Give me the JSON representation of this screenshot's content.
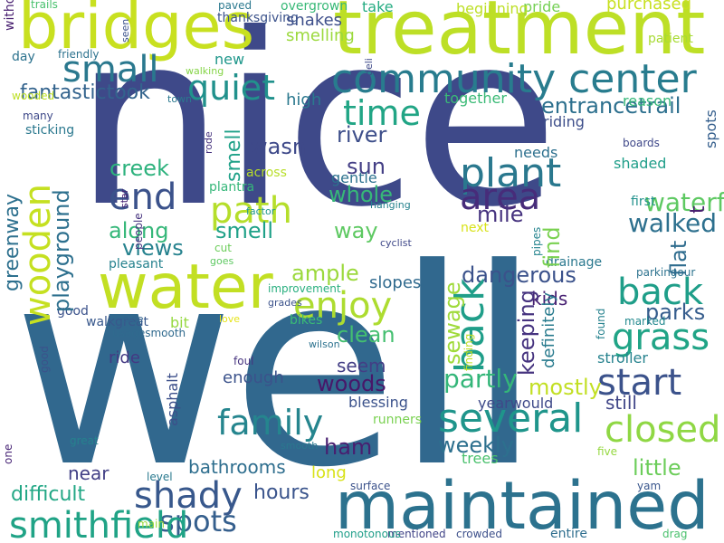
{
  "words": [
    {
      "text": "well",
      "color": "#31688e"
    },
    {
      "text": "nice",
      "color": "#3e4989"
    },
    {
      "text": "treatment",
      "color": "#bddf26"
    },
    {
      "text": "bridges",
      "color": "#c8e020"
    },
    {
      "text": "water",
      "color": "#c2df23"
    },
    {
      "text": "maintained",
      "color": "#2c728e"
    },
    {
      "text": "community center",
      "color": "#287c8e"
    },
    {
      "text": "small",
      "color": "#2a788e"
    },
    {
      "text": "quiet",
      "color": "#21918c"
    },
    {
      "text": "plant",
      "color": "#2a788e"
    },
    {
      "text": "time",
      "color": "#21a585"
    },
    {
      "text": "end",
      "color": "#3b528b"
    },
    {
      "text": "path",
      "color": "#b5de2b"
    },
    {
      "text": "area",
      "color": "#472c7a"
    },
    {
      "text": "enjoy",
      "color": "#addc30"
    },
    {
      "text": "back",
      "color": "#1f9e89"
    },
    {
      "text": "grass",
      "color": "#20a486"
    },
    {
      "text": "start",
      "color": "#3b528b"
    },
    {
      "text": "family",
      "color": "#25858e"
    },
    {
      "text": "several",
      "color": "#1f958b"
    },
    {
      "text": "closed",
      "color": "#8fd744"
    },
    {
      "text": "shady",
      "color": "#38588c"
    },
    {
      "text": "spots",
      "color": "#355f8d"
    },
    {
      "text": "smithfield",
      "color": "#20a386"
    },
    {
      "text": "wooden",
      "color": "#c5e021"
    },
    {
      "text": "greenway",
      "color": "#2d708e"
    },
    {
      "text": "fantastictook",
      "color": "#33638d"
    },
    {
      "text": "entrancetrail",
      "color": "#2d708e"
    },
    {
      "text": "playground",
      "color": "#2d708e"
    },
    {
      "text": "creek",
      "color": "#2db27d"
    },
    {
      "text": "along",
      "color": "#35b779"
    },
    {
      "text": "views",
      "color": "#26828e"
    },
    {
      "text": "smell",
      "color": "#1fa188"
    },
    {
      "text": "wasn",
      "color": "#3e4989"
    },
    {
      "text": "river",
      "color": "#3d4e8a"
    },
    {
      "text": "sun",
      "color": "#433e85"
    },
    {
      "text": "whole",
      "color": "#37b878"
    },
    {
      "text": "mile",
      "color": "#46337f"
    },
    {
      "text": "way",
      "color": "#5ec962"
    },
    {
      "text": "find",
      "color": "#7ad151"
    },
    {
      "text": "walked",
      "color": "#2d708e"
    },
    {
      "text": "waterfall",
      "color": "#5ec962"
    },
    {
      "text": "flat",
      "color": "#2f6c8e"
    },
    {
      "text": "t",
      "color": "#481f70"
    },
    {
      "text": "ample",
      "color": "#9bd93c"
    },
    {
      "text": "dangerous",
      "color": "#3b528b"
    },
    {
      "text": "slopes",
      "color": "#306a8e"
    },
    {
      "text": "clean",
      "color": "#44bf70"
    },
    {
      "text": "keeping",
      "color": "#46337f"
    },
    {
      "text": "sewage",
      "color": "#9fda3a"
    },
    {
      "text": "parks",
      "color": "#365d8d"
    },
    {
      "text": "partly",
      "color": "#34b679"
    },
    {
      "text": "woods",
      "color": "#481769"
    },
    {
      "text": "seem",
      "color": "#433e85"
    },
    {
      "text": "mostly",
      "color": "#c2df23"
    },
    {
      "text": "still",
      "color": "#404688"
    },
    {
      "text": "kids",
      "color": "#482173"
    },
    {
      "text": "definitely",
      "color": "#297b8e"
    },
    {
      "text": "ride",
      "color": "#443983"
    },
    {
      "text": "enough",
      "color": "#3b528b"
    },
    {
      "text": "ham",
      "color": "#481f70"
    },
    {
      "text": "weekly",
      "color": "#2d708e"
    },
    {
      "text": "little",
      "color": "#6ccd5a"
    },
    {
      "text": "difficult",
      "color": "#22a785"
    },
    {
      "text": "hours",
      "color": "#3a548c"
    },
    {
      "text": "bathrooms",
      "color": "#2e6e8e"
    },
    {
      "text": "near",
      "color": "#424086"
    },
    {
      "text": "long",
      "color": "#d8e219"
    },
    {
      "text": "take",
      "color": "#25ac82"
    },
    {
      "text": "pride",
      "color": "#75d054"
    },
    {
      "text": "purchased",
      "color": "#c8e020"
    },
    {
      "text": "beginning",
      "color": "#bddf26"
    },
    {
      "text": "overgrown",
      "color": "#38b977"
    },
    {
      "text": "snakes",
      "color": "#3d4e8a"
    },
    {
      "text": "smelling",
      "color": "#9bd93c"
    },
    {
      "text": "new",
      "color": "#1f978b"
    },
    {
      "text": "high",
      "color": "#2a788e"
    },
    {
      "text": "together",
      "color": "#3aba76"
    },
    {
      "text": "riding",
      "color": "#3d4e8a"
    },
    {
      "text": "reason",
      "color": "#35b779"
    },
    {
      "text": "needs",
      "color": "#2d708e"
    },
    {
      "text": "shaded",
      "color": "#1f9e89"
    },
    {
      "text": "boards",
      "color": "#3f4889"
    },
    {
      "text": "first",
      "color": "#21918c"
    },
    {
      "text": "next",
      "color": "#d8e219"
    },
    {
      "text": "pipes",
      "color": "#25848e"
    },
    {
      "text": "drainage",
      "color": "#2a788e"
    },
    {
      "text": "stroller",
      "color": "#26828e"
    },
    {
      "text": "marked",
      "color": "#23898e"
    },
    {
      "text": "parkingour",
      "color": "#2c728e"
    },
    {
      "text": "found",
      "color": "#26828e"
    },
    {
      "text": "yearwould",
      "color": "#3e4989"
    },
    {
      "text": "blessing",
      "color": "#3b528b"
    },
    {
      "text": "runners",
      "color": "#7ad151"
    },
    {
      "text": "trees",
      "color": "#4ac16d"
    },
    {
      "text": "five",
      "color": "#95d840"
    },
    {
      "text": "yam",
      "color": "#39568c"
    },
    {
      "text": "drag",
      "color": "#4ac16d"
    },
    {
      "text": "entire",
      "color": "#2e6e8e"
    },
    {
      "text": "crowded",
      "color": "#3c4f8a"
    },
    {
      "text": "mentioned",
      "color": "#414487"
    },
    {
      "text": "monotonous",
      "color": "#1f9e89"
    },
    {
      "text": "surface",
      "color": "#3b528b"
    },
    {
      "text": "smooth",
      "color": "#2a788e"
    },
    {
      "text": "level",
      "color": "#29798e"
    },
    {
      "text": "main",
      "color": "#9bd93c"
    },
    {
      "text": "great",
      "color": "#26828e"
    },
    {
      "text": "one",
      "color": "#482576"
    },
    {
      "text": "good",
      "color": "#3b528b"
    },
    {
      "text": "walkgreat",
      "color": "#38588c"
    },
    {
      "text": "usagesmooth",
      "color": "#306a8e"
    },
    {
      "text": "bit",
      "color": "#95d840"
    },
    {
      "text": "side",
      "color": "#32648e"
    },
    {
      "text": "love",
      "color": "#e5e419"
    },
    {
      "text": "bikes",
      "color": "#3aba76"
    },
    {
      "text": "wilson",
      "color": "#2c728e"
    },
    {
      "text": "finding",
      "color": "#c2df23"
    },
    {
      "text": "foul",
      "color": "#46337f"
    },
    {
      "text": "asphalt",
      "color": "#3c4f8a"
    },
    {
      "text": "improvement",
      "color": "#29af7f"
    },
    {
      "text": "grades",
      "color": "#3b528b"
    },
    {
      "text": "sticking",
      "color": "#2a788e"
    },
    {
      "text": "pleasant",
      "color": "#26828e"
    },
    {
      "text": "goes",
      "color": "#5ec962"
    },
    {
      "text": "cut",
      "color": "#6ccd5a"
    },
    {
      "text": "cyclist",
      "color": "#3f4889"
    },
    {
      "text": "people",
      "color": "#46337f"
    },
    {
      "text": "star",
      "color": "#482173"
    },
    {
      "text": "factor",
      "color": "#1f978b"
    },
    {
      "text": "across",
      "color": "#b8de29"
    },
    {
      "text": "gentle",
      "color": "#2c728e"
    },
    {
      "text": "plantra",
      "color": "#35b779"
    },
    {
      "text": "rode",
      "color": "#46327e"
    },
    {
      "text": "hanging",
      "color": "#26828e"
    },
    {
      "text": "town",
      "color": "#2a788e"
    },
    {
      "text": "many",
      "color": "#3e4989"
    },
    {
      "text": "wooded",
      "color": "#bddf26"
    },
    {
      "text": "day",
      "color": "#2c728e"
    },
    {
      "text": "friendly",
      "color": "#2c728e"
    },
    {
      "text": "walking",
      "color": "#86d549"
    },
    {
      "text": "seen",
      "color": "#3b528b"
    },
    {
      "text": "trails",
      "color": "#48c16e"
    },
    {
      "text": "without",
      "color": "#481f70"
    },
    {
      "text": "paved",
      "color": "#2a788e"
    },
    {
      "text": "thanksgiving",
      "color": "#3b528b"
    },
    {
      "text": "deli",
      "color": "#3e4989"
    },
    {
      "text": "patient",
      "color": "#a8db34"
    },
    {
      "text": "someone",
      "color": "#3b528b"
    },
    {
      "text": "negative",
      "color": "#482878"
    },
    {
      "text": "go",
      "color": "#21918c"
    }
  ]
}
